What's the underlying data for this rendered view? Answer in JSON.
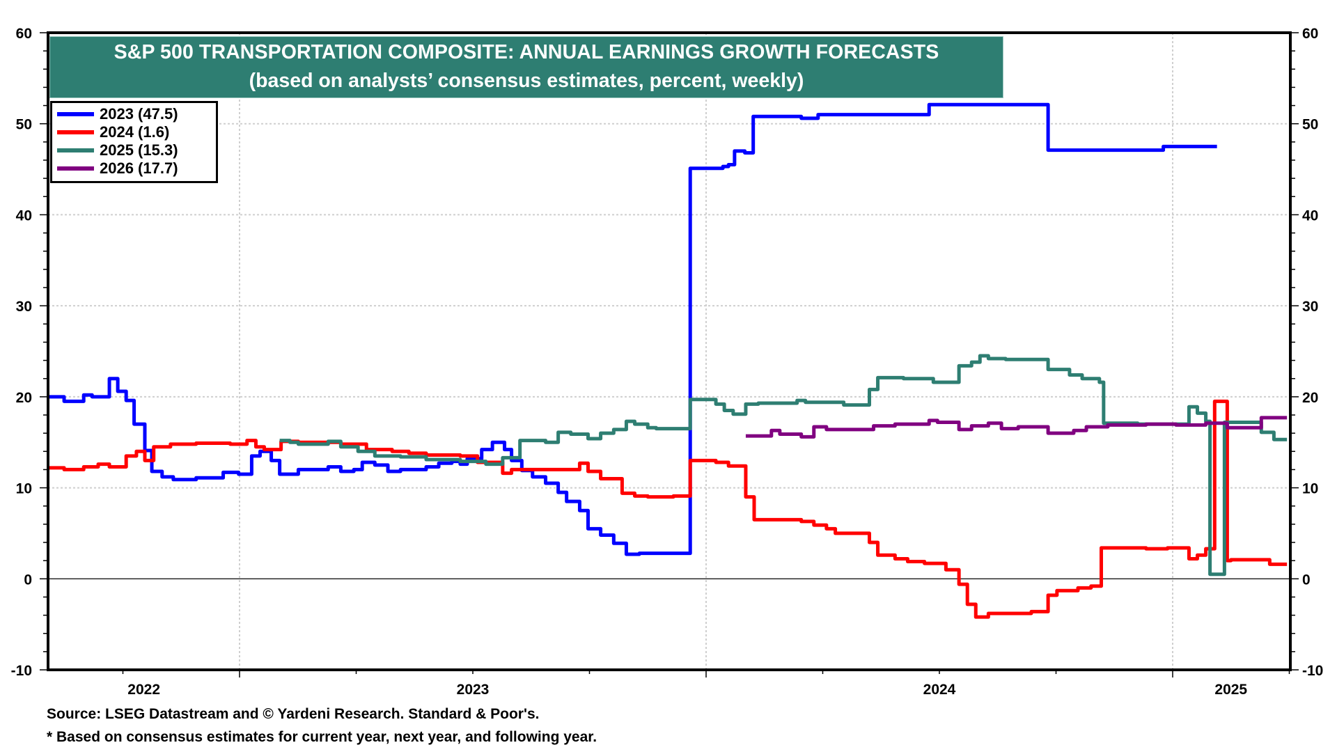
{
  "chart_data": {
    "type": "line",
    "title": "S&P 500 TRANSPORTATION COMPOSITE: ANNUAL EARNINGS GROWTH FORECASTS",
    "subtitle": "(based on analysts’ consensus estimates, percent, weekly)",
    "xlabel": "",
    "ylabel": "",
    "ylim": [
      -10,
      60
    ],
    "yticks": [
      -10,
      0,
      10,
      20,
      30,
      40,
      50,
      60
    ],
    "ytick_labels": [
      "-10",
      "0",
      "10",
      "20",
      "30",
      "40",
      "50",
      "60"
    ],
    "y_minor_step": 2,
    "y_axis_sides": [
      "left",
      "right"
    ],
    "xlim": [
      2022.59,
      2025.25
    ],
    "x_unit": "decimal year",
    "x_major_ticks": [
      2023,
      2024,
      2025
    ],
    "x_minor_step": 0.25,
    "xtick_labels": [
      {
        "label": "2022",
        "at": 2022.795
      },
      {
        "label": "2023",
        "at": 2023.5
      },
      {
        "label": "2024",
        "at": 2024.5
      },
      {
        "label": "2025",
        "at": 2025.125
      }
    ],
    "grid": {
      "horizontal": true,
      "vertical": true,
      "zero_line": true
    },
    "legend_position": "top-left",
    "step_line": true,
    "series": [
      {
        "name": "2023 (47.5)",
        "color": "#0000FF",
        "points": [
          [
            2022.591,
            20.0
          ],
          [
            2022.624,
            19.5
          ],
          [
            2022.666,
            20.2
          ],
          [
            2022.684,
            20.0
          ],
          [
            2022.721,
            22.0
          ],
          [
            2022.739,
            20.6
          ],
          [
            2022.757,
            19.6
          ],
          [
            2022.774,
            17.0
          ],
          [
            2022.797,
            14.1
          ],
          [
            2022.812,
            11.8
          ],
          [
            2022.834,
            11.2
          ],
          [
            2022.858,
            10.9
          ],
          [
            2022.907,
            11.1
          ],
          [
            2022.965,
            11.7
          ],
          [
            2022.998,
            11.5
          ],
          [
            2023.026,
            13.5
          ],
          [
            2023.044,
            14.0
          ],
          [
            2023.068,
            13.0
          ],
          [
            2023.086,
            11.5
          ],
          [
            2023.126,
            12.0
          ],
          [
            2023.19,
            12.3
          ],
          [
            2023.217,
            11.8
          ],
          [
            2023.245,
            12.0
          ],
          [
            2023.263,
            12.8
          ],
          [
            2023.29,
            12.5
          ],
          [
            2023.318,
            11.8
          ],
          [
            2023.345,
            12.0
          ],
          [
            2023.4,
            12.3
          ],
          [
            2023.427,
            12.7
          ],
          [
            2023.455,
            12.9
          ],
          [
            2023.473,
            12.6
          ],
          [
            2023.488,
            13.2
          ],
          [
            2023.519,
            14.2
          ],
          [
            2023.542,
            15.0
          ],
          [
            2023.568,
            14.2
          ],
          [
            2023.583,
            13.0
          ],
          [
            2023.605,
            11.9
          ],
          [
            2023.628,
            11.2
          ],
          [
            2023.656,
            10.5
          ],
          [
            2023.683,
            9.5
          ],
          [
            2023.701,
            8.5
          ],
          [
            2023.729,
            7.5
          ],
          [
            2023.747,
            5.5
          ],
          [
            2023.774,
            4.8
          ],
          [
            2023.802,
            3.9
          ],
          [
            2023.829,
            2.7
          ],
          [
            2023.857,
            2.8
          ],
          [
            2023.966,
            45.1
          ],
          [
            2024.012,
            45.1
          ],
          [
            2024.036,
            45.3
          ],
          [
            2024.048,
            45.5
          ],
          [
            2024.061,
            47.0
          ],
          [
            2024.083,
            46.8
          ],
          [
            2024.101,
            50.8
          ],
          [
            2024.204,
            50.6
          ],
          [
            2024.24,
            51.0
          ],
          [
            2024.478,
            52.1
          ],
          [
            2024.733,
            47.1
          ],
          [
            2024.98,
            47.5
          ],
          [
            2025.095,
            47.5
          ]
        ]
      },
      {
        "name": "2024 (1.6)",
        "color": "#FF0000",
        "points": [
          [
            2022.591,
            12.2
          ],
          [
            2022.624,
            12.0
          ],
          [
            2022.666,
            12.3
          ],
          [
            2022.697,
            12.6
          ],
          [
            2022.721,
            12.3
          ],
          [
            2022.757,
            13.5
          ],
          [
            2022.779,
            14.0
          ],
          [
            2022.797,
            13.0
          ],
          [
            2022.816,
            14.5
          ],
          [
            2022.852,
            14.8
          ],
          [
            2022.907,
            14.9
          ],
          [
            2022.98,
            14.8
          ],
          [
            2023.016,
            15.2
          ],
          [
            2023.035,
            14.5
          ],
          [
            2023.053,
            14.2
          ],
          [
            2023.089,
            15.1
          ],
          [
            2023.126,
            15.0
          ],
          [
            2023.217,
            14.8
          ],
          [
            2023.272,
            14.2
          ],
          [
            2023.327,
            14.0
          ],
          [
            2023.363,
            13.8
          ],
          [
            2023.4,
            13.6
          ],
          [
            2023.473,
            13.5
          ],
          [
            2023.51,
            12.8
          ],
          [
            2023.564,
            11.6
          ],
          [
            2023.583,
            12.0
          ],
          [
            2023.729,
            12.7
          ],
          [
            2023.747,
            11.8
          ],
          [
            2023.774,
            11.0
          ],
          [
            2023.82,
            9.4
          ],
          [
            2023.847,
            9.1
          ],
          [
            2023.875,
            9.0
          ],
          [
            2023.93,
            9.1
          ],
          [
            2023.966,
            13.0
          ],
          [
            2024.021,
            12.8
          ],
          [
            2024.048,
            12.4
          ],
          [
            2024.085,
            9.0
          ],
          [
            2024.103,
            6.5
          ],
          [
            2024.204,
            6.3
          ],
          [
            2024.231,
            5.9
          ],
          [
            2024.258,
            5.5
          ],
          [
            2024.277,
            5.0
          ],
          [
            2024.35,
            4.0
          ],
          [
            2024.368,
            2.6
          ],
          [
            2024.405,
            2.2
          ],
          [
            2024.432,
            1.9
          ],
          [
            2024.468,
            1.7
          ],
          [
            2024.514,
            1.0
          ],
          [
            2024.542,
            -0.6
          ],
          [
            2024.56,
            -2.8
          ],
          [
            2024.578,
            -4.2
          ],
          [
            2024.605,
            -3.8
          ],
          [
            2024.697,
            -3.6
          ],
          [
            2024.733,
            -1.8
          ],
          [
            2024.752,
            -1.3
          ],
          [
            2024.797,
            -1.0
          ],
          [
            2024.825,
            -0.8
          ],
          [
            2024.847,
            3.4
          ],
          [
            2024.943,
            3.3
          ],
          [
            2024.989,
            3.4
          ],
          [
            2025.035,
            2.2
          ],
          [
            2025.053,
            2.6
          ],
          [
            2025.071,
            3.3
          ],
          [
            2025.09,
            19.5
          ],
          [
            2025.117,
            2.0
          ],
          [
            2025.125,
            2.1
          ],
          [
            2025.208,
            1.6
          ],
          [
            2025.245,
            1.6
          ]
        ]
      },
      {
        "name": "2025 (15.3)",
        "color": "#2E7E72",
        "points": [
          [
            2023.086,
            15.2
          ],
          [
            2023.108,
            15.0
          ],
          [
            2023.126,
            14.8
          ],
          [
            2023.19,
            15.1
          ],
          [
            2023.217,
            14.5
          ],
          [
            2023.254,
            14.0
          ],
          [
            2023.29,
            13.5
          ],
          [
            2023.345,
            13.4
          ],
          [
            2023.4,
            13.1
          ],
          [
            2023.473,
            12.9
          ],
          [
            2023.528,
            12.6
          ],
          [
            2023.564,
            13.3
          ],
          [
            2023.601,
            15.2
          ],
          [
            2023.656,
            15.0
          ],
          [
            2023.683,
            16.1
          ],
          [
            2023.71,
            15.9
          ],
          [
            2023.747,
            15.4
          ],
          [
            2023.774,
            16.0
          ],
          [
            2023.802,
            16.4
          ],
          [
            2023.829,
            17.3
          ],
          [
            2023.847,
            17.0
          ],
          [
            2023.875,
            16.6
          ],
          [
            2023.893,
            16.5
          ],
          [
            2023.966,
            19.7
          ],
          [
            2024.021,
            19.2
          ],
          [
            2024.039,
            18.5
          ],
          [
            2024.058,
            18.1
          ],
          [
            2024.085,
            19.2
          ],
          [
            2024.112,
            19.3
          ],
          [
            2024.195,
            19.6
          ],
          [
            2024.213,
            19.4
          ],
          [
            2024.295,
            19.1
          ],
          [
            2024.35,
            20.8
          ],
          [
            2024.368,
            22.1
          ],
          [
            2024.423,
            22.0
          ],
          [
            2024.487,
            21.6
          ],
          [
            2024.542,
            23.4
          ],
          [
            2024.569,
            23.8
          ],
          [
            2024.587,
            24.5
          ],
          [
            2024.605,
            24.2
          ],
          [
            2024.642,
            24.1
          ],
          [
            2024.733,
            23.0
          ],
          [
            2024.779,
            22.4
          ],
          [
            2024.806,
            22.0
          ],
          [
            2024.843,
            21.6
          ],
          [
            2024.852,
            17.1
          ],
          [
            2024.925,
            17.0
          ],
          [
            2025.035,
            18.9
          ],
          [
            2025.053,
            18.2
          ],
          [
            2025.071,
            17.3
          ],
          [
            2025.08,
            0.5
          ],
          [
            2025.111,
            17.2
          ],
          [
            2025.19,
            16.1
          ],
          [
            2025.217,
            15.3
          ],
          [
            2025.245,
            15.3
          ]
        ]
      },
      {
        "name": "2026 (17.7)",
        "color": "#800080",
        "points": [
          [
            2024.085,
            15.7
          ],
          [
            2024.14,
            16.3
          ],
          [
            2024.158,
            15.9
          ],
          [
            2024.204,
            15.6
          ],
          [
            2024.231,
            16.7
          ],
          [
            2024.258,
            16.4
          ],
          [
            2024.359,
            16.8
          ],
          [
            2024.405,
            17.0
          ],
          [
            2024.478,
            17.4
          ],
          [
            2024.496,
            17.2
          ],
          [
            2024.542,
            16.4
          ],
          [
            2024.569,
            16.8
          ],
          [
            2024.605,
            17.1
          ],
          [
            2024.633,
            16.5
          ],
          [
            2024.669,
            16.7
          ],
          [
            2024.733,
            16.0
          ],
          [
            2024.788,
            16.3
          ],
          [
            2024.815,
            16.7
          ],
          [
            2024.861,
            16.9
          ],
          [
            2024.943,
            17.0
          ],
          [
            2025.007,
            16.9
          ],
          [
            2025.071,
            17.1
          ],
          [
            2025.117,
            16.6
          ],
          [
            2025.19,
            17.7
          ],
          [
            2025.245,
            17.7
          ]
        ]
      }
    ],
    "annotations": [
      "Source: LSEG Datastream and © Yardeni Research. Standard & Poor's.",
      "* Based on consensus estimates for current year, next year, and following year."
    ]
  },
  "header": {
    "title": "S&P 500 TRANSPORTATION COMPOSITE: ANNUAL EARNINGS GROWTH FORECASTS",
    "subtitle": "(based on analysts’ consensus estimates, percent, weekly)"
  },
  "legend": {
    "items": [
      {
        "label": "2023 (47.5)",
        "color": "#0000FF"
      },
      {
        "label": "2024 (1.6)",
        "color": "#FF0000"
      },
      {
        "label": "2025 (15.3)",
        "color": "#2E7E72"
      },
      {
        "label": "2026 (17.7)",
        "color": "#800080"
      }
    ]
  },
  "footer": {
    "source": "Source: LSEG Datastream and © Yardeni Research. Standard & Poor's.",
    "note": "* Based on consensus estimates for current year, next year, and following year."
  }
}
